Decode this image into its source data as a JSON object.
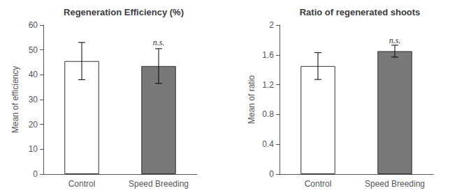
{
  "chart_data": [
    {
      "type": "bar",
      "title": "Regeneration Efficiency (%)",
      "categories": [
        "Control",
        "Speed Breeding"
      ],
      "values": [
        45.5,
        43.5
      ],
      "errors": [
        7.5,
        7.0
      ],
      "colors": [
        "white",
        "#797979"
      ],
      "ylabel": "Mean of efficiency",
      "ylim": [
        0,
        60
      ],
      "yticks": [
        0,
        10,
        20,
        30,
        40,
        50,
        60
      ],
      "grid": false,
      "annotations": [
        {
          "text": "n.s.",
          "x": "Speed Breeding",
          "y": 51.2
        }
      ]
    },
    {
      "type": "bar",
      "title": "Ratio of regenerated shoots",
      "categories": [
        "Control",
        "Speed Breeding"
      ],
      "values": [
        1.45,
        1.65
      ],
      "errors": [
        0.18,
        0.08
      ],
      "colors": [
        "white",
        "#797979"
      ],
      "ylabel": "Mean of ratio",
      "ylim": [
        0,
        2
      ],
      "yticks": [
        0,
        0.4,
        0.8,
        1.2,
        1.6,
        2
      ],
      "grid": false,
      "annotations": [
        {
          "text": "n.s.",
          "x": "Speed Breeding",
          "y": 1.74
        }
      ]
    }
  ]
}
